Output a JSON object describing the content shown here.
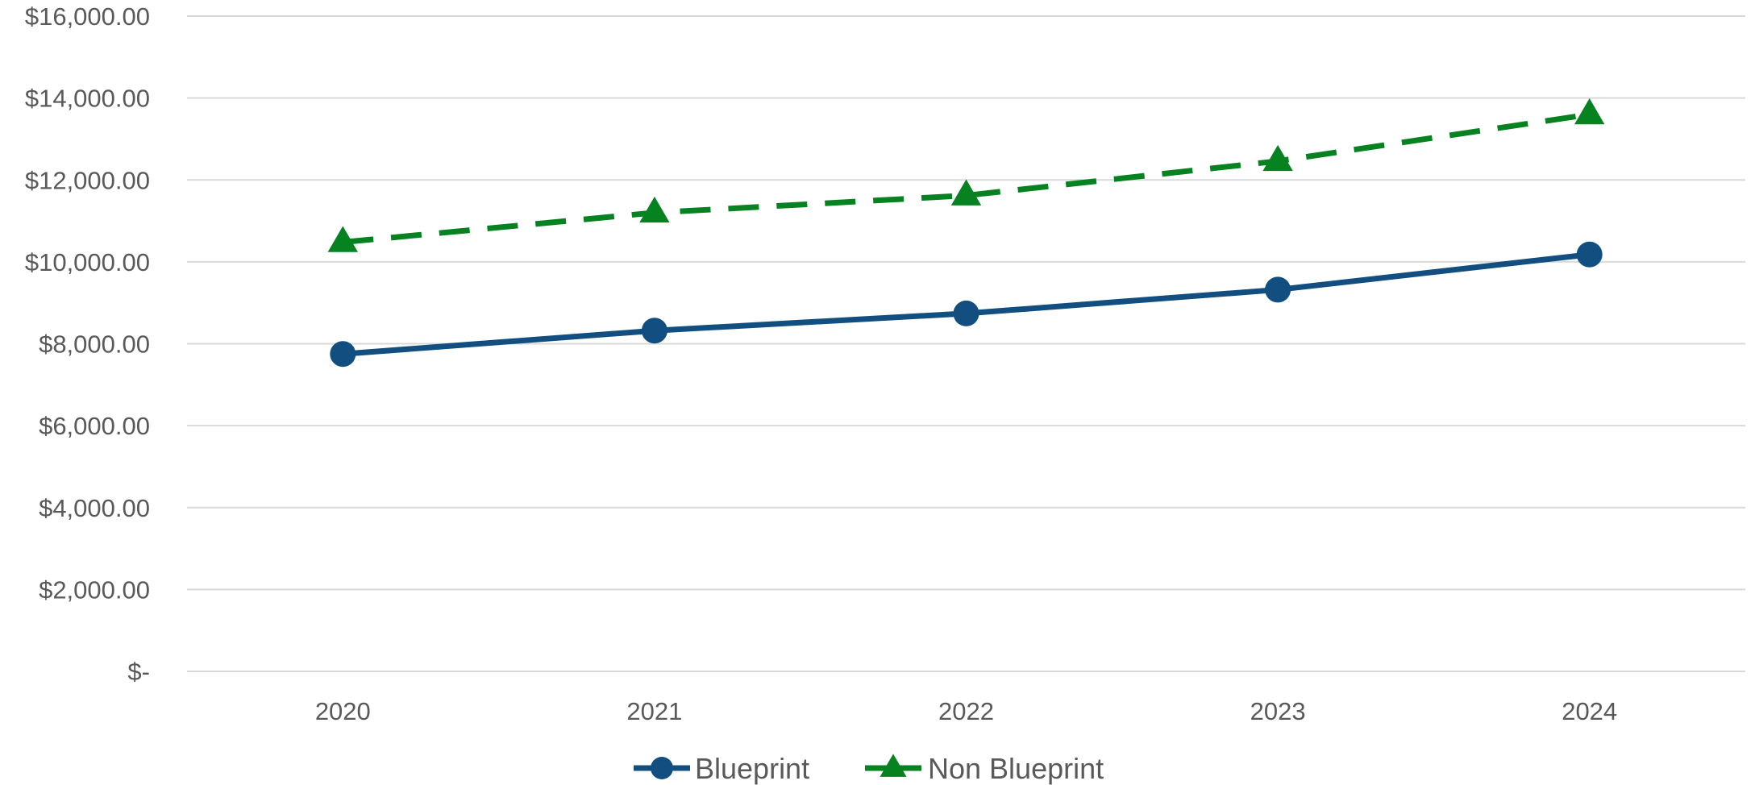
{
  "chart_data": {
    "type": "line",
    "title": "",
    "xlabel": "",
    "ylabel": "",
    "categories": [
      "2020",
      "2021",
      "2022",
      "2023",
      "2024"
    ],
    "ylim": [
      0,
      16000
    ],
    "y_ticks": [
      {
        "value": 0,
        "label": "$-"
      },
      {
        "value": 2000,
        "label": "$2,000.00"
      },
      {
        "value": 4000,
        "label": "$4,000.00"
      },
      {
        "value": 6000,
        "label": "$6,000.00"
      },
      {
        "value": 8000,
        "label": "$8,000.00"
      },
      {
        "value": 10000,
        "label": "$10,000.00"
      },
      {
        "value": 12000,
        "label": "$12,000.00"
      },
      {
        "value": 14000,
        "label": "$14,000.00"
      },
      {
        "value": 16000,
        "label": "$16,000.00"
      }
    ],
    "grid": "horizontal",
    "legend_position": "bottom-center",
    "series": [
      {
        "name": "Blueprint",
        "values": [
          7750,
          8320,
          8740,
          9320,
          10180
        ],
        "color": "#124f80",
        "marker": "circle",
        "line_style": "solid"
      },
      {
        "name": "Non Blueprint",
        "values": [
          10480,
          11200,
          11620,
          12460,
          13600
        ],
        "color": "#068221",
        "marker": "triangle",
        "line_style": "dashed"
      }
    ]
  }
}
